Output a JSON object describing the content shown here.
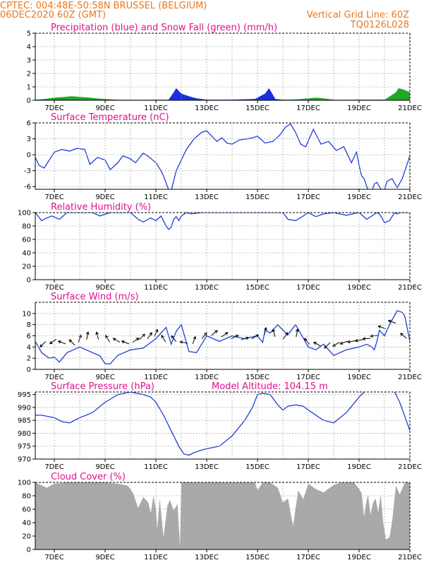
{
  "header": {
    "left_line1": "CPTEC:  004:48E-50:58N  BRUSSEL (BELGIUM)",
    "left_line2": "06DEC2020 60Z (GMT)",
    "right_line1": "Vertical Grid Line: 60Z",
    "right_line2": "TQ0126L028"
  },
  "colors": {
    "header": "#e8781e",
    "panel_title": "#e0108f",
    "line": "#1f3fd8",
    "rain": "#1a2fe0",
    "snow": "#22a822",
    "cloud": "#a9a9a9",
    "grid": "#9a9a9a"
  },
  "x_axis": {
    "labels": [
      "7DEC",
      "9DEC",
      "11DEC",
      "13DEC",
      "15DEC",
      "17DEC",
      "19DEC",
      "21DEC"
    ],
    "label_days": [
      7,
      9,
      11,
      13,
      15,
      17,
      19,
      21
    ],
    "grid_days": [
      7,
      8,
      9,
      10,
      11,
      12,
      13,
      14,
      15,
      16,
      17,
      18,
      19,
      20,
      21
    ],
    "range_days": [
      6.25,
      21.0
    ]
  },
  "chart_data": [
    {
      "id": "precip",
      "type": "area",
      "title": "Precipitation (blue) and Snow Fall (green) (mm/h)",
      "ylim": [
        0,
        5
      ],
      "yticks": [
        0,
        1,
        2,
        3,
        4,
        5
      ],
      "grid": true,
      "series": [
        {
          "role": "rain",
          "x": [
            6.25,
            7.2,
            7.6,
            8.0,
            8.5,
            9.5,
            10.5,
            11.5,
            11.7,
            11.8,
            12.0,
            12.3,
            12.6,
            13.0,
            14.0,
            14.9,
            15.3,
            15.45,
            15.55,
            15.7,
            16.0,
            16.5,
            17.0,
            17.3,
            17.8,
            18.0,
            19.0,
            20.0,
            20.4,
            20.55,
            20.7,
            21.0
          ],
          "y": [
            0.02,
            0.05,
            0.08,
            0.06,
            0.03,
            0.02,
            0.03,
            0.05,
            0.6,
            0.9,
            0.5,
            0.3,
            0.15,
            0.05,
            0.05,
            0.1,
            0.5,
            0.9,
            0.6,
            0.1,
            0.05,
            0.05,
            0.08,
            0.1,
            0.05,
            0.02,
            0.05,
            0.05,
            0.02,
            0.05,
            0.05,
            0.02
          ]
        },
        {
          "role": "snow",
          "x": [
            6.25,
            6.6,
            7.0,
            7.4,
            7.7,
            8.0,
            8.4,
            8.8,
            9.5,
            10.5,
            11.5,
            12.0,
            14.0,
            15.0,
            16.0,
            16.6,
            17.0,
            17.3,
            17.6,
            18.0,
            19.0,
            20.0,
            20.45,
            20.55,
            20.75,
            21.0
          ],
          "y": [
            0.05,
            0.1,
            0.2,
            0.25,
            0.3,
            0.25,
            0.2,
            0.12,
            0.05,
            0.03,
            0.03,
            0.03,
            0.02,
            0.02,
            0.03,
            0.08,
            0.15,
            0.2,
            0.15,
            0.05,
            0.03,
            0.03,
            0.6,
            0.9,
            0.8,
            0.6
          ]
        }
      ]
    },
    {
      "id": "temp",
      "type": "line",
      "title": "Surface Temperature (nC)",
      "ylim": [
        -6.5,
        6
      ],
      "yticks": [
        -6,
        -3,
        0,
        3,
        6
      ],
      "grid": true,
      "series": [
        {
          "x": [
            6.25,
            6.4,
            6.6,
            6.8,
            7.0,
            7.3,
            7.6,
            7.9,
            8.2,
            8.4,
            8.7,
            9.0,
            9.2,
            9.5,
            9.7,
            10.0,
            10.2,
            10.5,
            10.7,
            11.0,
            11.2,
            11.3,
            11.5,
            11.6,
            11.8,
            12.0,
            12.2,
            12.5,
            12.8,
            13.0,
            13.2,
            13.4,
            13.6,
            13.8,
            14.0,
            14.3,
            14.6,
            14.8,
            15.0,
            15.3,
            15.6,
            15.9,
            16.1,
            16.3,
            16.5,
            16.7,
            16.9,
            17.2,
            17.5,
            17.8,
            18.1,
            18.4,
            18.7,
            18.9,
            19.0,
            19.1,
            19.2,
            19.3,
            19.4,
            19.5,
            19.55,
            19.6,
            19.7,
            19.8,
            19.9,
            20.0,
            20.1,
            20.3,
            20.5,
            20.7,
            21.0
          ],
          "y": [
            -0.5,
            -2.0,
            -2.5,
            -1.0,
            0.5,
            1.0,
            0.7,
            1.2,
            1.0,
            -1.8,
            -0.5,
            -1.0,
            -2.8,
            -1.5,
            -0.2,
            -0.8,
            -1.5,
            0.3,
            -0.3,
            -1.5,
            -3.0,
            -4.0,
            -6.6,
            -6.8,
            -3.0,
            -1.0,
            1.0,
            3.0,
            4.2,
            4.5,
            3.5,
            2.5,
            3.2,
            2.2,
            2.0,
            2.8,
            3.0,
            3.2,
            3.5,
            2.2,
            2.5,
            3.8,
            5.2,
            5.8,
            4.2,
            2.0,
            1.5,
            4.8,
            2.0,
            2.5,
            0.8,
            1.5,
            -1.5,
            0.5,
            -2.0,
            -4.0,
            -4.5,
            -6.0,
            -7.0,
            -6.8,
            -6.2,
            -5.5,
            -5.2,
            -6.0,
            -6.8,
            -6.6,
            -5.0,
            -4.5,
            -6.2,
            -4.5,
            -0.2
          ]
        }
      ]
    },
    {
      "id": "rh",
      "type": "line",
      "title": "Relative Humidity (%)",
      "ylim": [
        0,
        100
      ],
      "yticks": [
        0,
        20,
        40,
        60,
        80,
        100
      ],
      "grid": true,
      "series": [
        {
          "x": [
            6.25,
            6.5,
            6.7,
            6.9,
            7.2,
            7.5,
            8.0,
            8.5,
            8.8,
            9.2,
            9.5,
            10.0,
            10.3,
            10.5,
            10.8,
            11.0,
            11.2,
            11.4,
            11.5,
            11.6,
            11.7,
            11.8,
            11.9,
            12.0,
            12.2,
            12.4,
            12.8,
            13.0,
            13.5,
            14.0,
            14.5,
            15.0,
            15.5,
            16.0,
            16.2,
            16.5,
            16.8,
            17.0,
            17.3,
            17.6,
            18.0,
            18.5,
            19.0,
            19.3,
            19.5,
            19.7,
            19.8,
            19.9,
            20.0,
            20.2,
            20.4,
            20.5,
            20.6,
            20.8,
            21.0
          ],
          "y": [
            100,
            88,
            92,
            95,
            90,
            100,
            100,
            100,
            95,
            100,
            100,
            100,
            90,
            86,
            92,
            88,
            95,
            80,
            75,
            78,
            90,
            94,
            88,
            95,
            100,
            98,
            100,
            100,
            100,
            100,
            100,
            100,
            100,
            100,
            90,
            88,
            95,
            100,
            94,
            98,
            100,
            96,
            100,
            90,
            95,
            100,
            98,
            92,
            85,
            88,
            100,
            98,
            100,
            100,
            100
          ]
        }
      ]
    },
    {
      "id": "wind",
      "type": "line",
      "title": "Surface Wind (m/s)",
      "ylim": [
        0,
        12
      ],
      "yticks": [
        0,
        2,
        4,
        6,
        8,
        10
      ],
      "grid": true,
      "series": [
        {
          "x": [
            6.25,
            6.5,
            6.8,
            7.0,
            7.2,
            7.5,
            8.0,
            8.5,
            8.8,
            9.0,
            9.2,
            9.5,
            10.0,
            10.5,
            11.0,
            11.4,
            11.6,
            11.8,
            12.0,
            12.3,
            12.6,
            13.0,
            13.5,
            14.0,
            14.5,
            15.0,
            15.2,
            15.3,
            15.5,
            15.8,
            16.0,
            16.2,
            16.5,
            17.0,
            17.3,
            17.6,
            18.0,
            18.5,
            19.0,
            19.3,
            19.5,
            19.6,
            19.7,
            19.8,
            20.0,
            20.2,
            20.5,
            20.7,
            20.8,
            21.0
          ],
          "y": [
            5.0,
            3.0,
            2.0,
            2.2,
            1.3,
            3.0,
            4.0,
            3.0,
            2.4,
            1.0,
            1.0,
            2.5,
            3.5,
            3.8,
            5.5,
            7.5,
            4.5,
            6.8,
            8.0,
            3.2,
            3.0,
            6.0,
            5.0,
            6.0,
            5.5,
            6.0,
            4.8,
            7.0,
            6.5,
            8.0,
            7.0,
            6.2,
            8.0,
            4.0,
            3.5,
            4.5,
            2.5,
            3.5,
            4.0,
            4.5,
            4.0,
            3.5,
            5.0,
            7.0,
            6.0,
            8.0,
            10.5,
            10.2,
            9.5,
            5.0
          ]
        }
      ],
      "vectors": [
        {
          "day": 6.55,
          "speed": 4.5,
          "dir": 225
        },
        {
          "day": 6.95,
          "speed": 5.0,
          "dir": 235
        },
        {
          "day": 7.3,
          "speed": 4.8,
          "dir": 290
        },
        {
          "day": 7.7,
          "speed": 4.8,
          "dir": 315
        },
        {
          "day": 8.0,
          "speed": 5.5,
          "dir": 20
        },
        {
          "day": 8.3,
          "speed": 6.0,
          "dir": 10
        },
        {
          "day": 8.7,
          "speed": 6.0,
          "dir": 345
        },
        {
          "day": 9.1,
          "speed": 5.5,
          "dir": 330
        },
        {
          "day": 9.45,
          "speed": 5.2,
          "dir": 300
        },
        {
          "day": 9.8,
          "speed": 4.8,
          "dir": 290
        },
        {
          "day": 10.2,
          "speed": 5.2,
          "dir": 55
        },
        {
          "day": 10.45,
          "speed": 5.8,
          "dir": 45
        },
        {
          "day": 10.75,
          "speed": 6.0,
          "dir": 35
        },
        {
          "day": 11.0,
          "speed": 6.5,
          "dir": 25
        },
        {
          "day": 11.3,
          "speed": 5.5,
          "dir": 330
        },
        {
          "day": 11.7,
          "speed": 5.5,
          "dir": 320
        },
        {
          "day": 12.1,
          "speed": 4.8,
          "dir": 280
        },
        {
          "day": 12.5,
          "speed": 5.2,
          "dir": 20
        },
        {
          "day": 12.9,
          "speed": 6.0,
          "dir": 40
        },
        {
          "day": 13.3,
          "speed": 6.5,
          "dir": 50
        },
        {
          "day": 13.7,
          "speed": 6.2,
          "dir": 55
        },
        {
          "day": 14.1,
          "speed": 5.8,
          "dir": 65
        },
        {
          "day": 14.5,
          "speed": 5.5,
          "dir": 75
        },
        {
          "day": 14.9,
          "speed": 5.8,
          "dir": 60
        },
        {
          "day": 15.3,
          "speed": 6.8,
          "dir": 15
        },
        {
          "day": 15.65,
          "speed": 6.5,
          "dir": 345
        },
        {
          "day": 16.1,
          "speed": 6.0,
          "dir": 35
        },
        {
          "day": 16.55,
          "speed": 6.5,
          "dir": 10
        },
        {
          "day": 16.95,
          "speed": 5.0,
          "dir": 320
        },
        {
          "day": 17.35,
          "speed": 4.5,
          "dir": 300
        },
        {
          "day": 17.75,
          "speed": 4.3,
          "dir": 225
        },
        {
          "day": 18.1,
          "speed": 4.5,
          "dir": 240
        },
        {
          "day": 18.4,
          "speed": 4.8,
          "dir": 250
        },
        {
          "day": 18.7,
          "speed": 5.0,
          "dir": 260
        },
        {
          "day": 19.0,
          "speed": 5.2,
          "dir": 260
        },
        {
          "day": 19.3,
          "speed": 5.5,
          "dir": 265
        },
        {
          "day": 19.6,
          "speed": 6.0,
          "dir": 265
        },
        {
          "day": 19.9,
          "speed": 7.5,
          "dir": 290
        },
        {
          "day": 20.3,
          "speed": 8.5,
          "dir": 290
        },
        {
          "day": 20.75,
          "speed": 6.0,
          "dir": 310
        }
      ]
    },
    {
      "id": "pressure",
      "type": "line",
      "title": "Surface Pressure (hPa)",
      "annotation": "Model Altitude: 104.15 m",
      "ylim": [
        970,
        996
      ],
      "yticks": [
        970,
        975,
        980,
        985,
        990,
        995
      ],
      "grid": true,
      "series": [
        {
          "x": [
            6.25,
            6.5,
            7.0,
            7.3,
            7.6,
            8.0,
            8.5,
            9.0,
            9.5,
            10.0,
            10.5,
            10.8,
            11.0,
            11.3,
            11.6,
            11.9,
            12.1,
            12.3,
            12.5,
            12.8,
            13.0,
            13.5,
            14.0,
            14.5,
            14.8,
            15.0,
            15.2,
            15.5,
            15.8,
            16.0,
            16.2,
            16.5,
            16.8,
            17.0,
            17.3,
            17.6,
            18.0,
            18.5,
            19.0,
            19.2,
            19.4,
            19.5,
            20.0,
            20.3,
            20.6,
            21.0
          ],
          "y": [
            987,
            987,
            986,
            984.5,
            984,
            986,
            988,
            992,
            995,
            996,
            995,
            994,
            992,
            987,
            981,
            975,
            972,
            971.5,
            972.5,
            973.5,
            974,
            975,
            979,
            985,
            990,
            995,
            995.5,
            995,
            991,
            989,
            990.5,
            991,
            990.5,
            989,
            987,
            985,
            984,
            988,
            994,
            996,
            998,
            1000,
            1001,
            998,
            992,
            981
          ]
        }
      ]
    },
    {
      "id": "cloud",
      "type": "area",
      "title": "Cloud Cover (%)",
      "ylim": [
        0,
        100
      ],
      "yticks": [
        0,
        20,
        40,
        60,
        80,
        100
      ],
      "grid": true,
      "series": [
        {
          "x": [
            6.25,
            6.7,
            7.0,
            7.5,
            8.0,
            8.5,
            8.8,
            9.0,
            9.5,
            9.9,
            10.1,
            10.3,
            10.5,
            10.7,
            10.8,
            10.9,
            11.0,
            11.05,
            11.15,
            11.3,
            11.45,
            11.55,
            11.7,
            11.85,
            11.95,
            12.0,
            12.5,
            13.0,
            13.5,
            14.0,
            14.5,
            14.9,
            15.0,
            15.2,
            15.5,
            15.8,
            16.0,
            16.2,
            16.4,
            16.6,
            16.8,
            17.0,
            17.3,
            17.6,
            18.0,
            18.3,
            18.6,
            18.8,
            19.0,
            19.1,
            19.2,
            19.25,
            19.35,
            19.45,
            19.55,
            19.65,
            19.75,
            19.85,
            19.95,
            20.05,
            20.2,
            20.3,
            20.45,
            20.6,
            20.8,
            21.0
          ],
          "y": [
            100,
            92,
            98,
            100,
            100,
            100,
            100,
            100,
            98,
            95,
            84,
            62,
            78,
            70,
            54,
            80,
            60,
            30,
            76,
            18,
            65,
            74,
            58,
            68,
            4,
            100,
            100,
            100,
            100,
            100,
            100,
            100,
            88,
            100,
            100,
            92,
            70,
            76,
            35,
            88,
            75,
            98,
            90,
            85,
            96,
            100,
            100,
            100,
            90,
            84,
            48,
            64,
            82,
            52,
            70,
            76,
            55,
            82,
            40,
            15,
            18,
            42,
            95,
            82,
            100,
            100
          ]
        }
      ]
    }
  ]
}
